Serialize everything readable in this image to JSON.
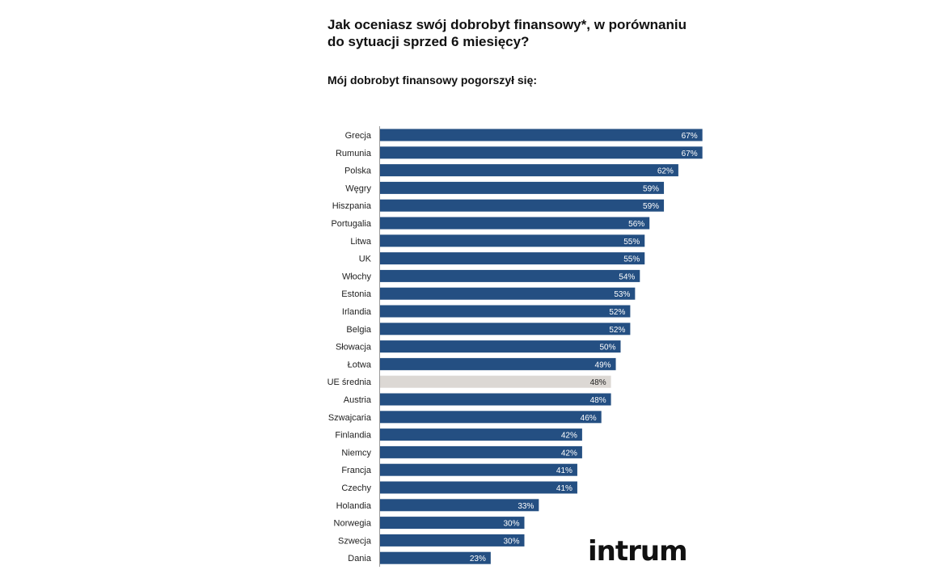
{
  "title": "Jak oceniasz swój dobrobyt finansowy*, w porównaniu do sytuacji sprzed 6 miesięcy?",
  "subtitle": "Mój dobrobyt finansowy pogorszył się:",
  "logo": "intrum",
  "colors": {
    "bar": "#244f82",
    "highlight": "#dcd8d4",
    "label_on_bar": "#ffffff",
    "label_on_highlight": "#222222"
  },
  "chart_data": {
    "type": "bar",
    "orientation": "horizontal",
    "title": "Jak oceniasz swój dobrobyt finansowy*, w porównaniu do sytuacji sprzed 6 miesięcy?",
    "subtitle": "Mój dobrobyt finansowy pogorszył się:",
    "categories": [
      "Grecja",
      "Rumunia",
      "Polska",
      "Węgry",
      "Hiszpania",
      "Portugalia",
      "Litwa",
      "UK",
      "Włochy",
      "Estonia",
      "Irlandia",
      "Belgia",
      "Słowacja",
      "Łotwa",
      "UE średnia",
      "Austria",
      "Szwajcaria",
      "Finlandia",
      "Niemcy",
      "Francja",
      "Czechy",
      "Holandia",
      "Norwegia",
      "Szwecja",
      "Dania"
    ],
    "values": [
      67,
      67,
      62,
      59,
      59,
      56,
      55,
      55,
      54,
      53,
      52,
      52,
      50,
      49,
      48,
      48,
      46,
      42,
      42,
      41,
      41,
      33,
      30,
      30,
      23
    ],
    "value_labels": [
      "67%",
      "67%",
      "62%",
      "59%",
      "59%",
      "56%",
      "55%",
      "55%",
      "54%",
      "53%",
      "52%",
      "52%",
      "50%",
      "49%",
      "48%",
      "48%",
      "46%",
      "42%",
      "42%",
      "41%",
      "41%",
      "33%",
      "30%",
      "30%",
      "23%"
    ],
    "highlight_category": "UE średnia",
    "unit": "%",
    "grid": false,
    "legend": "none"
  }
}
